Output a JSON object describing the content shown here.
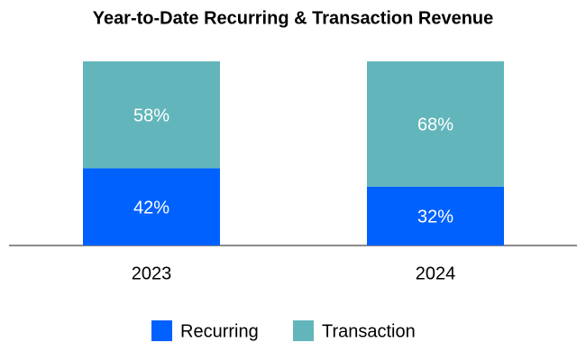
{
  "chart_data": {
    "type": "stacked-bar",
    "title": "Year-to-Date Recurring & Transaction Revenue",
    "categories": [
      "2023",
      "2024"
    ],
    "series": [
      {
        "name": "Recurring",
        "color": "#0061fe",
        "values": [
          42,
          32
        ],
        "value_labels": [
          "42%",
          "32%"
        ]
      },
      {
        "name": "Transaction",
        "color": "#62b6bb",
        "values": [
          58,
          68
        ],
        "value_labels": [
          "58%",
          "68%"
        ]
      }
    ],
    "legend": "bottom"
  }
}
